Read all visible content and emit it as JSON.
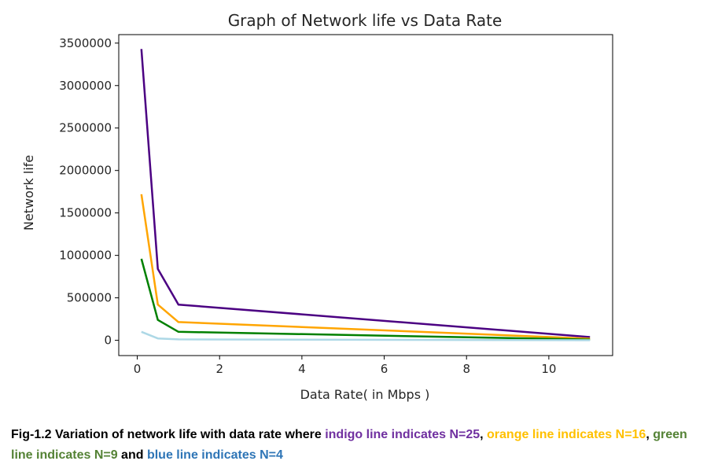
{
  "chart_data": {
    "type": "line",
    "title": "Graph of Network life vs Data Rate",
    "xlabel": "Data Rate( in Mbps )",
    "ylabel": "Network life",
    "xlim": [
      -0.45,
      11.55
    ],
    "ylim": [
      -180000,
      3600000
    ],
    "xticks": [
      0,
      2,
      4,
      6,
      8,
      10
    ],
    "yticks": [
      0,
      500000,
      1000000,
      1500000,
      2000000,
      2500000,
      3000000,
      3500000
    ],
    "xtick_labels": [
      "0",
      "2",
      "4",
      "6",
      "8",
      "10"
    ],
    "ytick_labels": [
      "0",
      "500000",
      "1000000",
      "1500000",
      "2000000",
      "2500000",
      "3000000",
      "3500000"
    ],
    "grid": false,
    "series": [
      {
        "color": "#4b0082",
        "x": [
          0.1,
          0.5,
          1,
          11
        ],
        "y": [
          3430000,
          840000,
          420000,
          38000
        ]
      },
      {
        "color": "#ffa500",
        "x": [
          0.1,
          0.5,
          1,
          11
        ],
        "y": [
          1720000,
          420000,
          215000,
          19000
        ]
      },
      {
        "color": "#008000",
        "x": [
          0.1,
          0.5,
          1,
          11
        ],
        "y": [
          960000,
          240000,
          100000,
          9000
        ]
      },
      {
        "color": "#add8e6",
        "x": [
          0.1,
          0.5,
          1,
          11
        ],
        "y": [
          100000,
          22000,
          11000,
          1000
        ]
      }
    ]
  },
  "caption": {
    "part1": "Fig-1.2 Variation of network life with data rate where ",
    "indigo": "indigo line indicates N=25",
    "sep1": ", ",
    "orange": "orange line indicates N=16",
    "sep2": ", ",
    "green": "green line indicates N=9",
    "sep3": " and ",
    "blue": "blue line indicates N=4",
    "colors": {
      "indigo": "#7030a0",
      "orange": "#ffc000",
      "green": "#548235",
      "blue": "#2e75b6"
    }
  }
}
